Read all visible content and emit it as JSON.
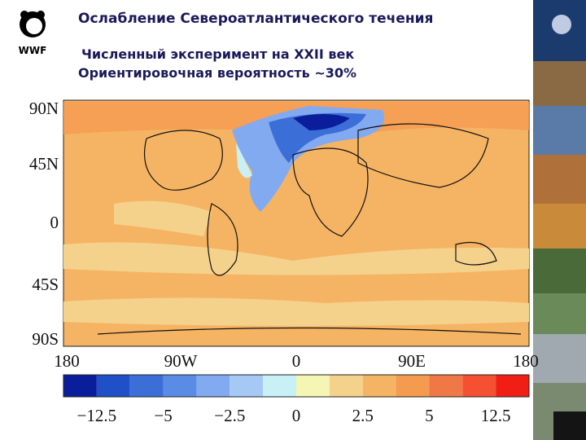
{
  "logo": {
    "text": "WWF"
  },
  "header": {
    "title": "Ослабление Североатлантического течения",
    "lines": [
      "Численный эксперимент на XXII век",
      "Ориентировочная вероятность ~30%"
    ]
  },
  "map": {
    "lat_labels": [
      "90N",
      "45N",
      "0",
      "45S",
      "90S"
    ],
    "lon_labels": [
      "180",
      "90W",
      "0",
      "90E",
      "180"
    ]
  },
  "colorbar": {
    "labels": [
      "−12.5",
      "−5",
      "−2.5",
      "0",
      "2.5",
      "5",
      "12.5"
    ]
  }
}
